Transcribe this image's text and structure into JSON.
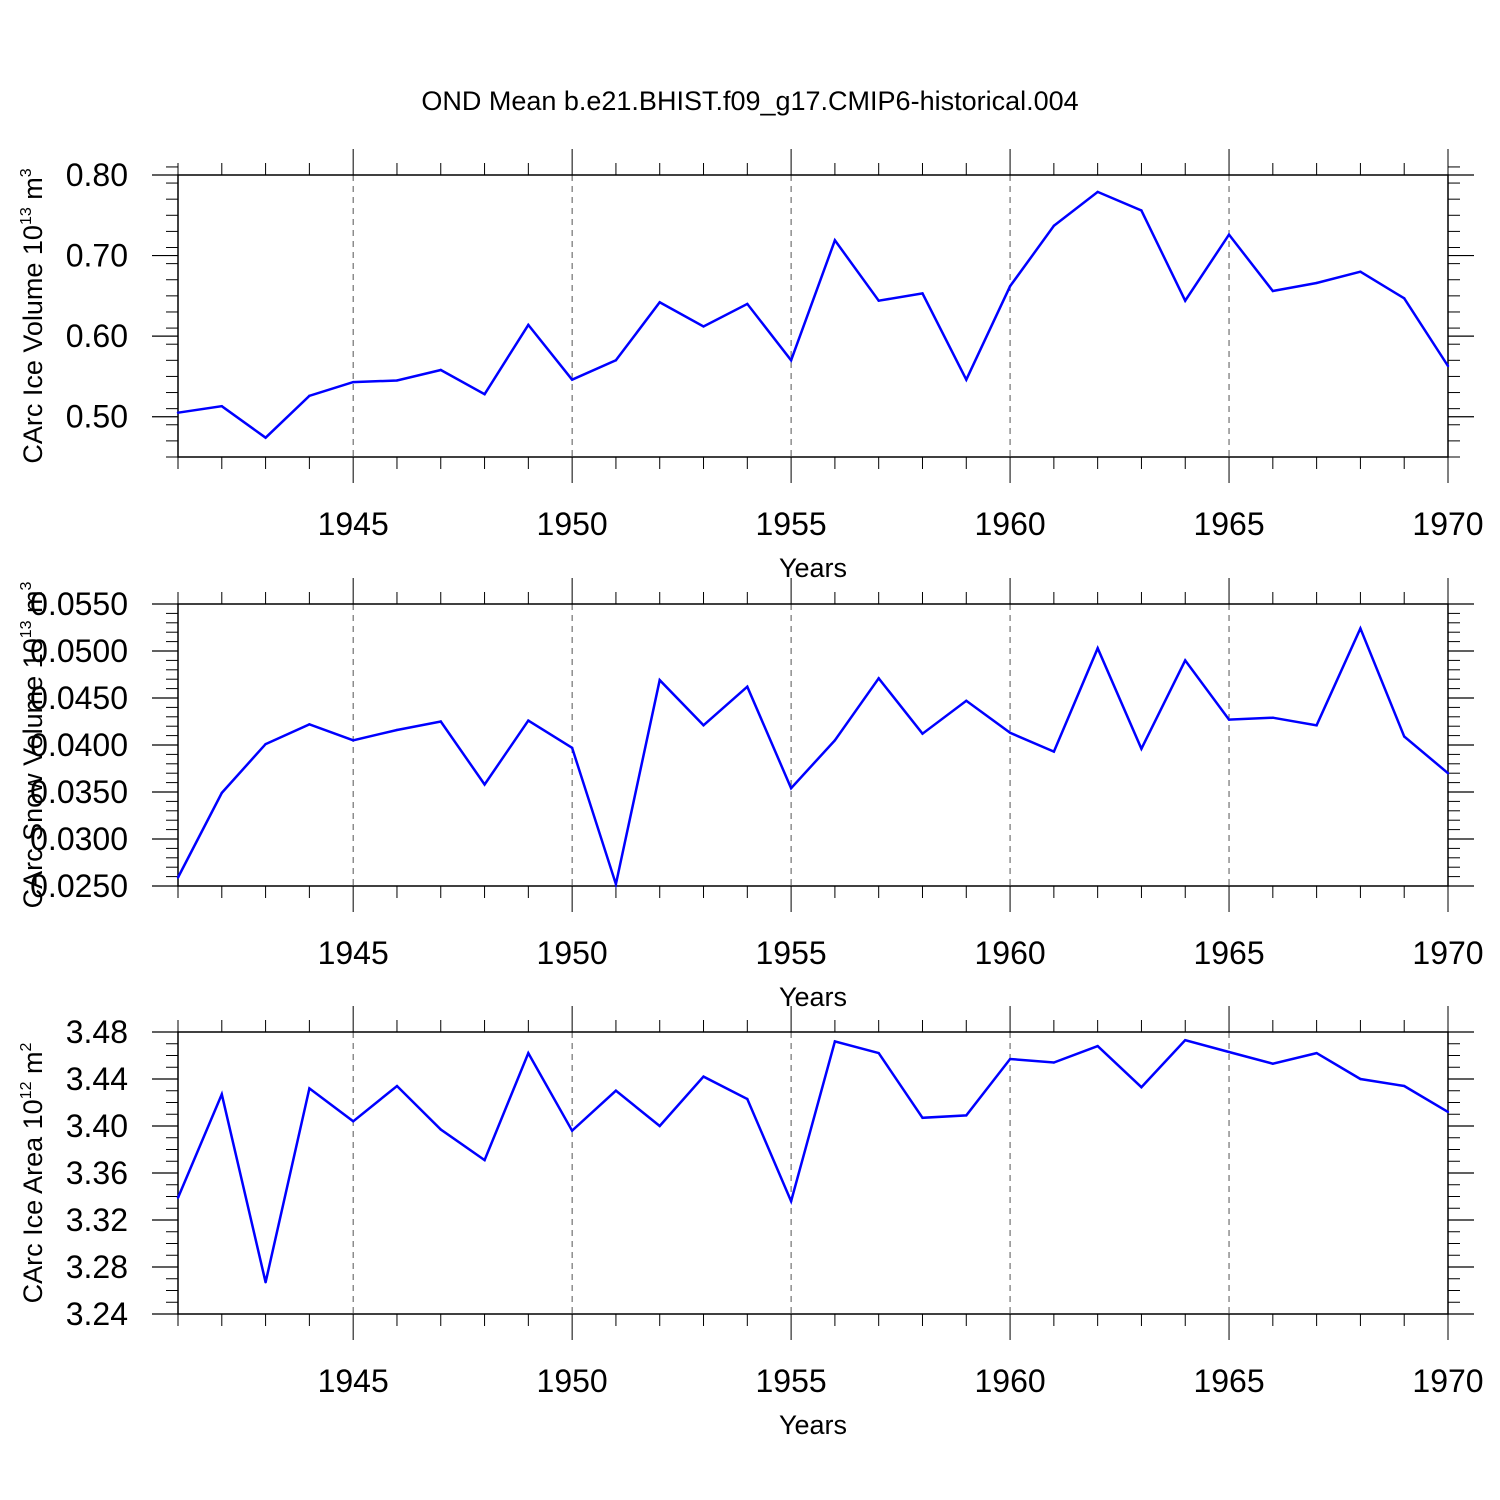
{
  "title": "OND Mean b.e21.BHIST.f09_g17.CMIP6-historical.004",
  "colors": {
    "series": "#0000ff",
    "axes": "#000000",
    "grid": "#555555"
  },
  "chart_data": [
    {
      "type": "line",
      "title": "",
      "xlabel": "Years",
      "ylabel": {
        "prefix": "CArc Ice Volume 10",
        "exp1": "13",
        "mid": " m",
        "exp2": "3"
      },
      "grid": "vertical dashed at major x ticks",
      "xlim": [
        1941,
        1970
      ],
      "ylim": [
        0.45,
        0.8
      ],
      "x_ticks": [
        1945,
        1950,
        1955,
        1960,
        1965,
        1970
      ],
      "x_tick_labels": [
        "1945",
        "1950",
        "1955",
        "1960",
        "1965",
        "1970"
      ],
      "y_ticks": [
        0.5,
        0.6,
        0.7,
        0.8
      ],
      "y_tick_labels": [
        "0.50",
        "0.60",
        "0.70",
        "0.80"
      ],
      "y_minor_step": 0.02,
      "x": [
        1941,
        1942,
        1943,
        1944,
        1945,
        1946,
        1947,
        1948,
        1949,
        1950,
        1951,
        1952,
        1953,
        1954,
        1955,
        1956,
        1957,
        1958,
        1959,
        1960,
        1961,
        1962,
        1963,
        1964,
        1965,
        1966,
        1967,
        1968,
        1969,
        1970
      ],
      "series": [
        {
          "values": [
            0.505,
            0.513,
            0.474,
            0.526,
            0.543,
            0.545,
            0.558,
            0.528,
            0.614,
            0.546,
            0.57,
            0.642,
            0.612,
            0.64,
            0.57,
            0.719,
            0.644,
            0.653,
            0.546,
            0.662,
            0.737,
            0.779,
            0.756,
            0.644,
            0.726,
            0.656,
            0.666,
            0.68,
            0.647,
            0.563
          ]
        }
      ]
    },
    {
      "type": "line",
      "title": "",
      "xlabel": "Years",
      "ylabel": {
        "prefix": "CArc Snow Volume 10",
        "exp1": "13",
        "mid": " m",
        "exp2": "3"
      },
      "grid": "vertical dashed at major x ticks",
      "xlim": [
        1941,
        1970
      ],
      "ylim": [
        0.025,
        0.055
      ],
      "x_ticks": [
        1945,
        1950,
        1955,
        1960,
        1965,
        1970
      ],
      "x_tick_labels": [
        "1945",
        "1950",
        "1955",
        "1960",
        "1965",
        "1970"
      ],
      "y_ticks": [
        0.025,
        0.03,
        0.035,
        0.04,
        0.045,
        0.05,
        0.055
      ],
      "y_tick_labels": [
        "0.0250",
        "0.0300",
        "0.0350",
        "0.0400",
        "0.0450",
        "0.0500",
        "0.0550"
      ],
      "y_minor_step": 0.001,
      "x": [
        1941,
        1942,
        1943,
        1944,
        1945,
        1946,
        1947,
        1948,
        1949,
        1950,
        1951,
        1952,
        1953,
        1954,
        1955,
        1956,
        1957,
        1958,
        1959,
        1960,
        1961,
        1962,
        1963,
        1964,
        1965,
        1966,
        1967,
        1968,
        1969,
        1970
      ],
      "series": [
        {
          "values": [
            0.0259,
            0.0349,
            0.0401,
            0.0422,
            0.0405,
            0.0416,
            0.0425,
            0.0358,
            0.0426,
            0.0397,
            0.0252,
            0.0469,
            0.0421,
            0.0462,
            0.0354,
            0.0405,
            0.0471,
            0.0412,
            0.0447,
            0.0413,
            0.0393,
            0.0503,
            0.0396,
            0.049,
            0.0427,
            0.0429,
            0.0421,
            0.0524,
            0.0409,
            0.037
          ]
        }
      ]
    },
    {
      "type": "line",
      "title": "",
      "xlabel": "Years",
      "ylabel": {
        "prefix": "CArc Ice Area 10",
        "exp1": "12",
        "mid": " m",
        "exp2": "2"
      },
      "grid": "vertical dashed at major x ticks",
      "xlim": [
        1941,
        1970
      ],
      "ylim": [
        3.24,
        3.48
      ],
      "x_ticks": [
        1945,
        1950,
        1955,
        1960,
        1965,
        1970
      ],
      "x_tick_labels": [
        "1945",
        "1950",
        "1955",
        "1960",
        "1965",
        "1970"
      ],
      "y_ticks": [
        3.24,
        3.28,
        3.32,
        3.36,
        3.4,
        3.44,
        3.48
      ],
      "y_tick_labels": [
        "3.24",
        "3.28",
        "3.32",
        "3.36",
        "3.40",
        "3.44",
        "3.48"
      ],
      "y_minor_step": 0.01,
      "x": [
        1941,
        1942,
        1943,
        1944,
        1945,
        1946,
        1947,
        1948,
        1949,
        1950,
        1951,
        1952,
        1953,
        1954,
        1955,
        1956,
        1957,
        1958,
        1959,
        1960,
        1961,
        1962,
        1963,
        1964,
        1965,
        1966,
        1967,
        1968,
        1969,
        1970
      ],
      "series": [
        {
          "values": [
            3.339,
            3.427,
            3.267,
            3.432,
            3.404,
            3.434,
            3.397,
            3.371,
            3.462,
            3.396,
            3.43,
            3.4,
            3.442,
            3.423,
            3.336,
            3.472,
            3.462,
            3.407,
            3.409,
            3.457,
            3.454,
            3.468,
            3.433,
            3.473,
            3.463,
            3.453,
            3.462,
            3.44,
            3.434,
            3.412
          ]
        }
      ]
    }
  ]
}
